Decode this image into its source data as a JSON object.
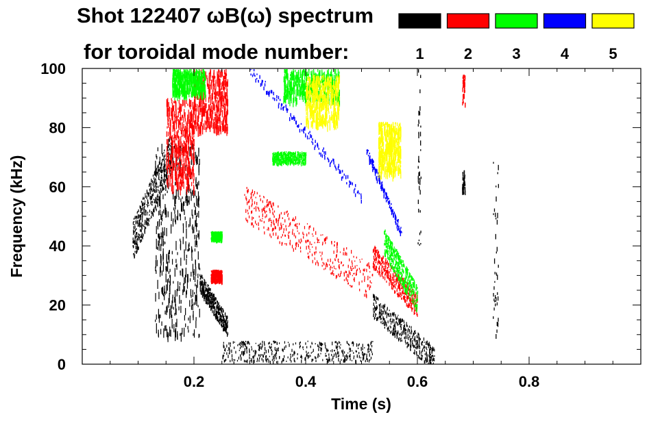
{
  "chart_data": {
    "type": "scatter",
    "title_line1": "Shot 122407 ωB(ω) spectrum",
    "title_line2": "for toroidal mode number:",
    "xlabel": "Time (s)",
    "ylabel": "Frequency (kHz)",
    "xlim": [
      0.0,
      1.0
    ],
    "ylim": [
      0,
      100
    ],
    "xticks": [
      0.2,
      0.4,
      0.6,
      0.8
    ],
    "xtick_labels": [
      "0.2",
      "0.4",
      "0.6",
      "0.8"
    ],
    "yticks": [
      0,
      20,
      40,
      60,
      80,
      100
    ],
    "ytick_labels": [
      "0",
      "20",
      "40",
      "60",
      "80",
      "100"
    ],
    "legend_position": "top-right",
    "legend": [
      {
        "label": "1",
        "color": "#000000"
      },
      {
        "label": "2",
        "color": "#ff0000"
      },
      {
        "label": "3",
        "color": "#00ff00"
      },
      {
        "label": "4",
        "color": "#0000ff"
      },
      {
        "label": "5",
        "color": "#ffff00"
      }
    ],
    "series": [
      {
        "name": "n=1",
        "color": "#000000",
        "features": [
          {
            "kind": "cloud",
            "t": [
              0.09,
              0.16
            ],
            "f": [
              42,
              72
            ],
            "trend": "rising"
          },
          {
            "kind": "cloud",
            "t": [
              0.13,
              0.21
            ],
            "f": [
              10,
              75
            ],
            "trend": "streaks"
          },
          {
            "kind": "cloud",
            "t": [
              0.21,
              0.26
            ],
            "f": [
              13,
              28
            ],
            "trend": "falling"
          },
          {
            "kind": "cloud",
            "t": [
              0.52,
              0.63
            ],
            "f": [
              2,
              20
            ],
            "trend": "falling"
          },
          {
            "kind": "cloud",
            "t": [
              0.25,
              0.52
            ],
            "f": [
              1,
              8
            ],
            "trend": "flat"
          },
          {
            "kind": "streak",
            "t": [
              0.68,
              0.685
            ],
            "f": [
              58,
              66
            ],
            "trend": "flat"
          },
          {
            "kind": "streak",
            "t": [
              0.735,
              0.745
            ],
            "f": [
              10,
              70
            ],
            "trend": "vertical"
          },
          {
            "kind": "streak",
            "t": [
              0.6,
              0.606
            ],
            "f": [
              40,
              100
            ],
            "trend": "vertical"
          }
        ]
      },
      {
        "name": "n=2",
        "color": "#ff0000",
        "features": [
          {
            "kind": "cloud",
            "t": [
              0.15,
              0.2
            ],
            "f": [
              60,
              90
            ],
            "trend": "streaks"
          },
          {
            "kind": "cloud",
            "t": [
              0.2,
              0.26
            ],
            "f": [
              80,
              100
            ],
            "trend": "streaks"
          },
          {
            "kind": "cloud",
            "t": [
              0.23,
              0.25
            ],
            "f": [
              28,
              32
            ],
            "trend": "flat"
          },
          {
            "kind": "cloud",
            "t": [
              0.29,
              0.52
            ],
            "f": [
              28,
              55
            ],
            "trend": "falling"
          },
          {
            "kind": "cloud",
            "t": [
              0.52,
              0.6
            ],
            "f": [
              20,
              37
            ],
            "trend": "falling"
          },
          {
            "kind": "streak",
            "t": [
              0.68,
              0.685
            ],
            "f": [
              88,
              98
            ],
            "trend": "vertical"
          }
        ]
      },
      {
        "name": "n=3",
        "color": "#00ff00",
        "features": [
          {
            "kind": "cloud",
            "t": [
              0.16,
              0.22
            ],
            "f": [
              92,
              100
            ],
            "trend": "streaks"
          },
          {
            "kind": "cloud",
            "t": [
              0.34,
              0.4
            ],
            "f": [
              68,
              72
            ],
            "trend": "flat"
          },
          {
            "kind": "cloud",
            "t": [
              0.23,
              0.25
            ],
            "f": [
              42,
              45
            ],
            "trend": "flat"
          },
          {
            "kind": "cloud",
            "t": [
              0.54,
              0.6
            ],
            "f": [
              22,
              42
            ],
            "trend": "falling"
          },
          {
            "kind": "cloud",
            "t": [
              0.36,
              0.46
            ],
            "f": [
              90,
              100
            ],
            "trend": "streaks"
          }
        ]
      },
      {
        "name": "n=4",
        "color": "#0000ff",
        "features": [
          {
            "kind": "chirp",
            "t": [
              0.3,
              0.5
            ],
            "f": [
              100,
              57
            ],
            "trend": "falling"
          },
          {
            "kind": "chirp",
            "t": [
              0.51,
              0.57
            ],
            "f": [
              72,
              45
            ],
            "trend": "falling"
          }
        ]
      },
      {
        "name": "n=5",
        "color": "#ffff00",
        "features": [
          {
            "kind": "cloud",
            "t": [
              0.4,
              0.46
            ],
            "f": [
              82,
              98
            ],
            "trend": "streaks"
          },
          {
            "kind": "cloud",
            "t": [
              0.53,
              0.57
            ],
            "f": [
              65,
              82
            ],
            "trend": "streaks"
          }
        ]
      }
    ]
  }
}
